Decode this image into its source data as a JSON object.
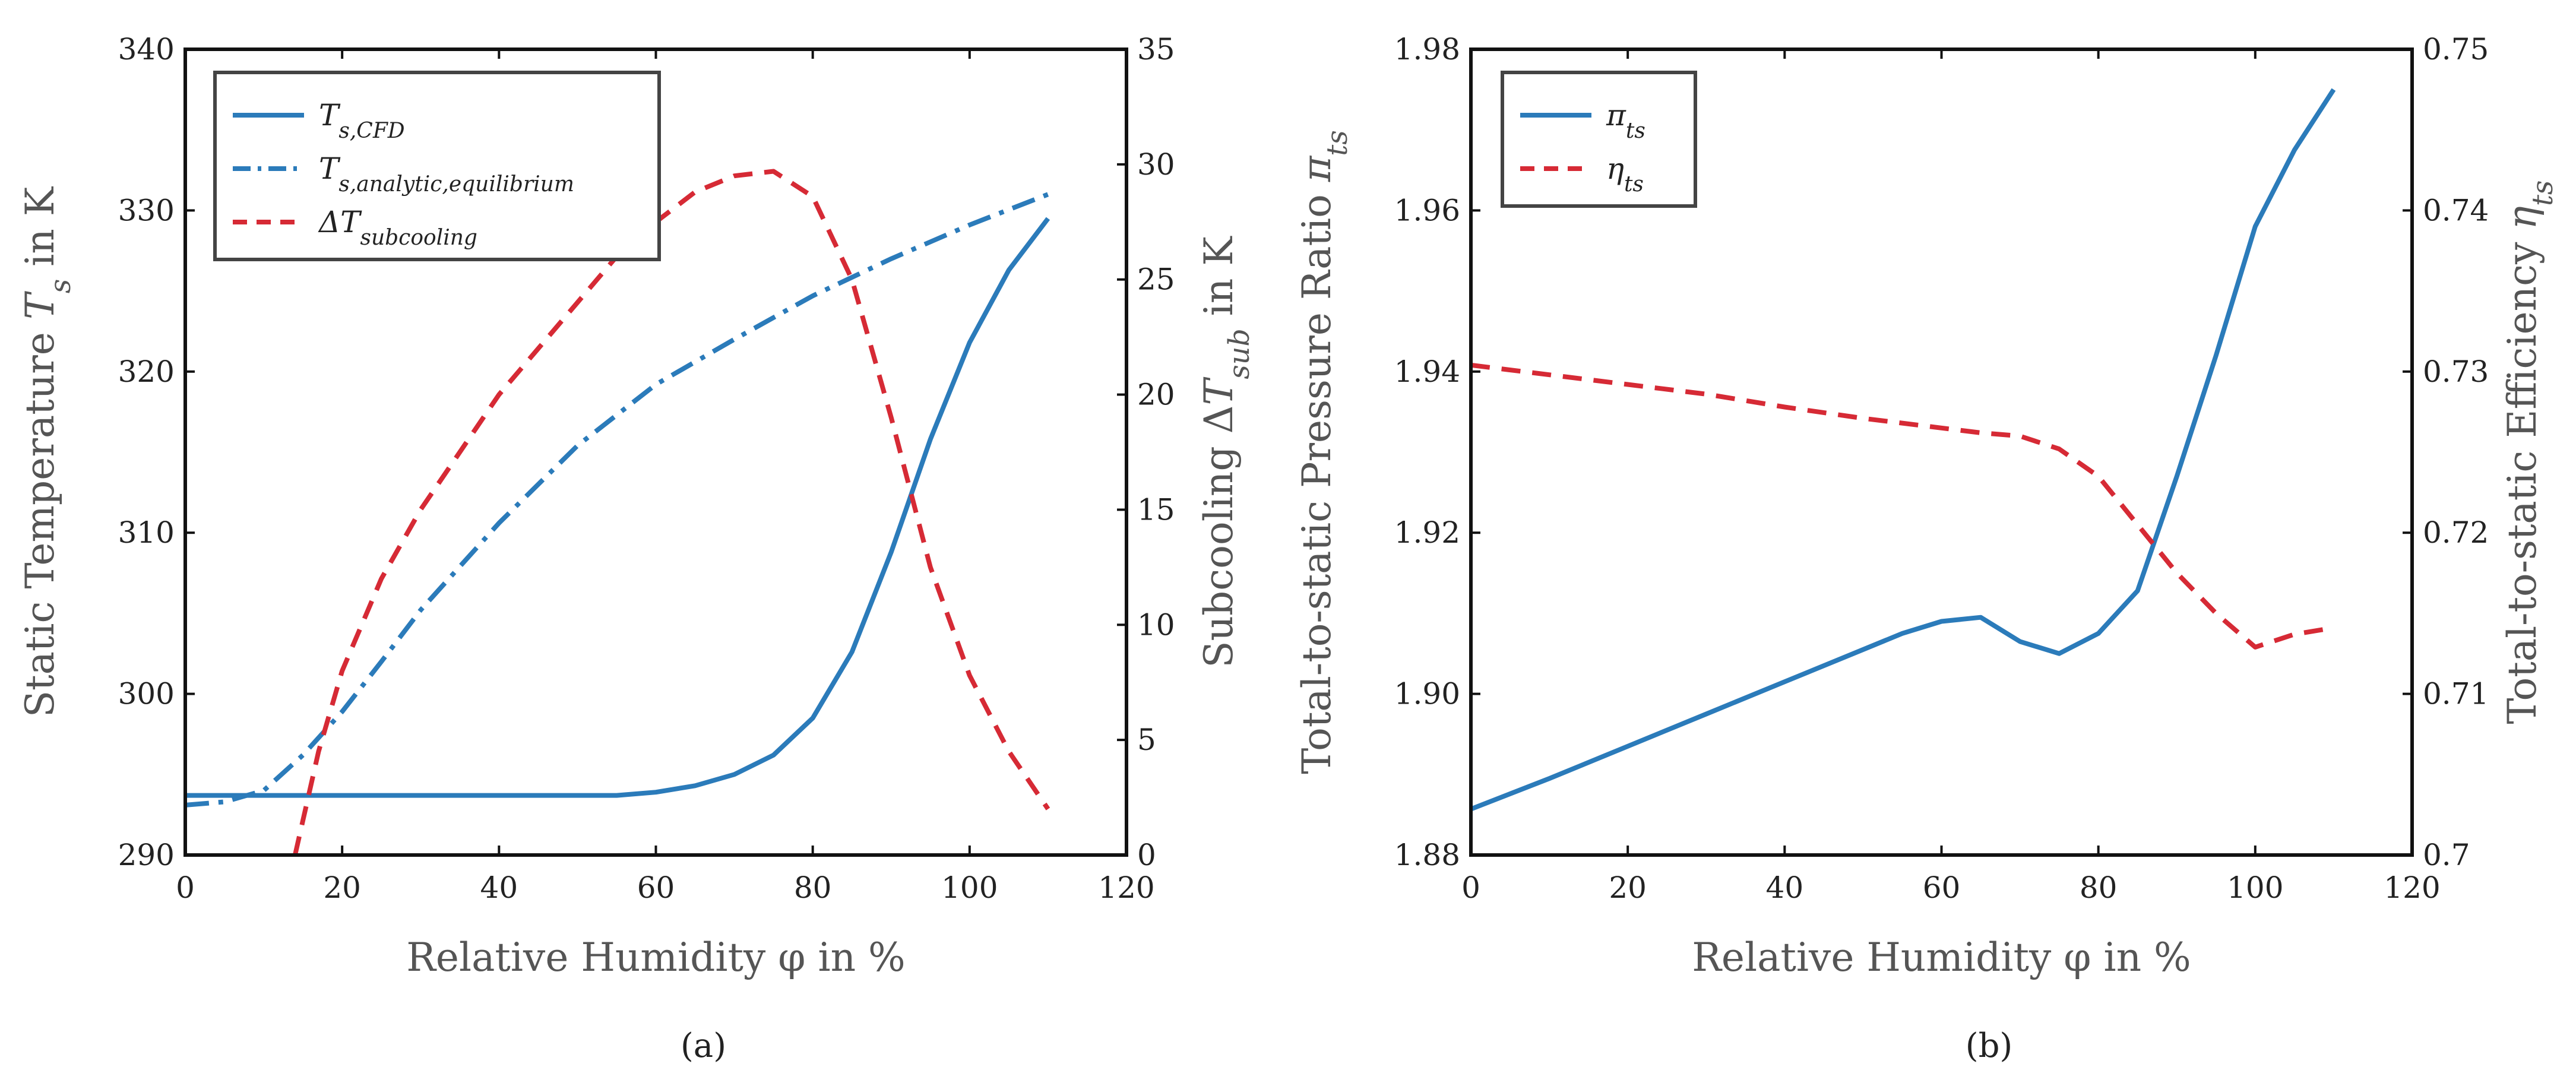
{
  "colors": {
    "blue": "#2b7bba",
    "red": "#d62a35",
    "axis": "#111111"
  },
  "chart_data": [
    {
      "type": "line",
      "caption": "(a)",
      "xlabel": "Relative Humidity φ in %",
      "ylabel": "Static Temperature T_s in K",
      "y2label": "Subcooling ΔT_sub in K",
      "xlim": [
        0,
        120
      ],
      "ylim": [
        290,
        340
      ],
      "y2lim": [
        0,
        35
      ],
      "xticks": [
        0,
        20,
        40,
        60,
        80,
        100,
        120
      ],
      "yticks": [
        290,
        300,
        310,
        320,
        330,
        340
      ],
      "y2ticks": [
        0,
        5,
        10,
        15,
        20,
        25,
        30,
        35
      ],
      "legend_position": "top-left",
      "series": [
        {
          "name": "T_s,CFD",
          "axis": "left",
          "style": "solid",
          "color": "#2b7bba",
          "x": [
            0,
            10,
            20,
            30,
            40,
            50,
            55,
            60,
            65,
            70,
            75,
            80,
            85,
            90,
            95,
            100,
            105,
            110
          ],
          "y": [
            293.7,
            293.7,
            293.7,
            293.7,
            293.7,
            293.7,
            293.7,
            293.9,
            294.3,
            295.0,
            296.2,
            298.5,
            302.6,
            308.8,
            315.8,
            321.8,
            326.3,
            329.5
          ]
        },
        {
          "name": "T_s,analytic,equilibrium",
          "axis": "left",
          "style": "dashdot",
          "color": "#2b7bba",
          "x": [
            0,
            5,
            10,
            15,
            20,
            25,
            30,
            40,
            50,
            60,
            70,
            80,
            90,
            100,
            110
          ],
          "y": [
            293.1,
            293.3,
            294.0,
            296.2,
            298.9,
            302.0,
            305.2,
            310.6,
            315.4,
            319.2,
            322.0,
            324.7,
            327.0,
            329.1,
            331.0
          ]
        },
        {
          "name": "ΔT_subcooling",
          "axis": "right",
          "style": "dashed",
          "color": "#d62a35",
          "x": [
            14,
            15,
            17,
            20,
            25,
            30,
            35,
            40,
            45,
            50,
            55,
            60,
            65,
            70,
            75,
            80,
            85,
            90,
            95,
            100,
            105,
            110
          ],
          "y": [
            0,
            1.5,
            4.5,
            8.0,
            12.0,
            15.0,
            17.5,
            20.0,
            22.0,
            24.0,
            26.0,
            27.5,
            28.8,
            29.5,
            29.7,
            28.6,
            25.0,
            19.0,
            12.5,
            7.8,
            4.5,
            2.0
          ]
        }
      ]
    },
    {
      "type": "line",
      "caption": "(b)",
      "xlabel": "Relative Humidity φ in %",
      "ylabel": "Total-to-static Pressure Ratio π_ts",
      "y2label": "Total-to-static Efficiency η_ts",
      "xlim": [
        0,
        120
      ],
      "ylim": [
        1.88,
        1.98
      ],
      "y2lim": [
        0.7,
        0.75
      ],
      "xticks": [
        0,
        20,
        40,
        60,
        80,
        100,
        120
      ],
      "yticks": [
        "1.88",
        "1.90",
        "1.92",
        "1.94",
        "1.96",
        "1.98"
      ],
      "y2ticks": [
        "0.7",
        "0.71",
        "0.72",
        "0.73",
        "0.74",
        "0.75"
      ],
      "legend_position": "top-left",
      "series": [
        {
          "name": "π_ts",
          "axis": "left",
          "style": "solid",
          "color": "#2b7bba",
          "x": [
            0,
            10,
            20,
            30,
            40,
            50,
            55,
            60,
            65,
            70,
            75,
            80,
            85,
            90,
            95,
            100,
            105,
            110
          ],
          "y": [
            1.8857,
            1.8895,
            1.8935,
            1.8975,
            1.9015,
            1.9055,
            1.9075,
            1.909,
            1.9095,
            1.9065,
            1.905,
            1.9075,
            1.9128,
            1.927,
            1.942,
            1.958,
            1.9675,
            1.975
          ]
        },
        {
          "name": "η_ts",
          "axis": "right",
          "style": "dashed",
          "color": "#d62a35",
          "x": [
            0,
            10,
            20,
            30,
            40,
            50,
            60,
            65,
            70,
            75,
            80,
            85,
            90,
            95,
            100,
            105,
            110
          ],
          "y": [
            0.7304,
            0.7298,
            0.7292,
            0.7286,
            0.7278,
            0.7271,
            0.7265,
            0.7262,
            0.726,
            0.7252,
            0.7235,
            0.7205,
            0.7175,
            0.715,
            0.7129,
            0.7137,
            0.7141
          ]
        }
      ]
    }
  ]
}
